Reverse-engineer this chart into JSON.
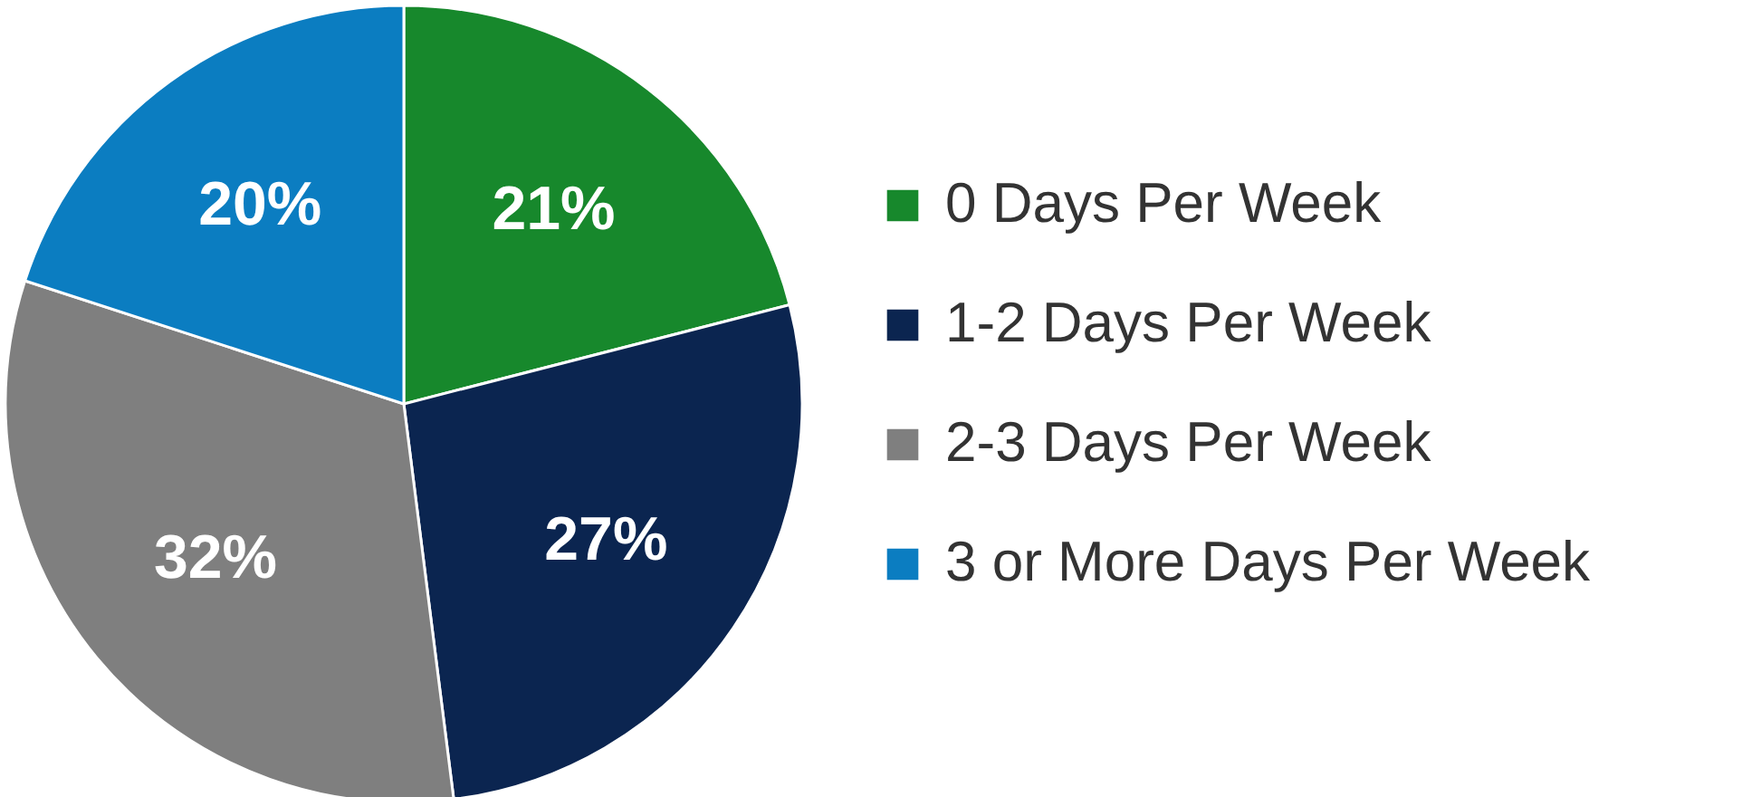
{
  "chart_data": {
    "type": "pie",
    "categories": [
      "0 Days Per Week",
      "1-2 Days Per Week",
      "2-3 Days Per Week",
      "3 or More Days Per Week"
    ],
    "values": [
      21,
      27,
      32,
      20
    ],
    "value_labels": [
      "21%",
      "27%",
      "32%",
      "20%"
    ],
    "colors": [
      "#17882c",
      "#0b2550",
      "#7f7f7f",
      "#0b7dc1"
    ],
    "legend": "right"
  }
}
